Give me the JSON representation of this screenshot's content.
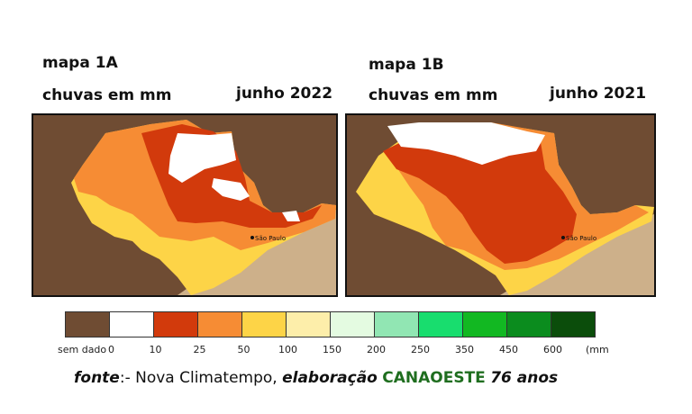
{
  "maps": [
    {
      "id": "1A",
      "title": "mapa 1A",
      "subtitle": "chuvas em mm",
      "period": "junho 2022",
      "city_label": "São Paulo"
    },
    {
      "id": "1B",
      "title": "mapa 1B",
      "subtitle": "chuvas em mm",
      "period": "junho 2021",
      "city_label": "São Paulo"
    }
  ],
  "legend": {
    "unit": "(mm",
    "classes": [
      {
        "label": "sem dado",
        "color": "#6f4c33"
      },
      {
        "label": "0",
        "color": "#ffffff"
      },
      {
        "label": "10",
        "color": "#d23a0c"
      },
      {
        "label": "25",
        "color": "#f68c34"
      },
      {
        "label": "50",
        "color": "#fdd447"
      },
      {
        "label": "100",
        "color": "#fdeeaa"
      },
      {
        "label": "150",
        "color": "#e4fbe1"
      },
      {
        "label": "200",
        "color": "#91e6b3"
      },
      {
        "label": "250",
        "color": "#18dd6e"
      },
      {
        "label": "350",
        "color": "#12b822"
      },
      {
        "label": "450",
        "color": "#0b8c1e"
      },
      {
        "label": "600",
        "color": "#0b4d0b"
      }
    ]
  },
  "source": {
    "prefix": "fonte",
    "sep": ":- Nova Climatempo,",
    "mid": "elaboração",
    "brand": "CANAOESTE",
    "suffix": "76 anos"
  }
}
